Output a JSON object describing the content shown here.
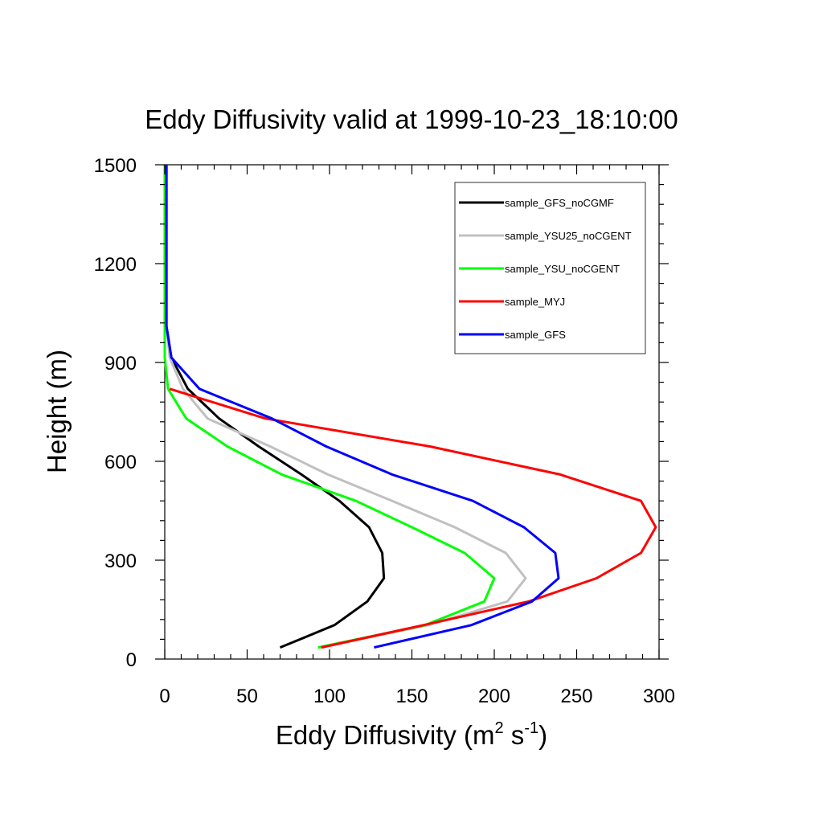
{
  "chart_data": {
    "type": "line",
    "title": "Eddy Diffusivity valid at 1999-10-23_18:10:00",
    "xlabel": "Eddy Diffusivity (m",
    "xlabel_sup1": "2",
    "xlabel_mid": " s",
    "xlabel_sup2": "-1",
    "xlabel_end": ")",
    "ylabel": "Height (m)",
    "xlim": [
      0,
      300
    ],
    "ylim": [
      0,
      1500
    ],
    "xticks": [
      0,
      50,
      100,
      150,
      200,
      250,
      300
    ],
    "yticks": [
      0,
      300,
      600,
      900,
      1200,
      1500
    ],
    "grid": false,
    "legend_position": "top-right",
    "series": [
      {
        "name": "sample_GFS_noCGMF",
        "color": "#000000",
        "x": [
          70,
          103,
          123,
          133,
          132,
          124,
          106,
          83,
          57,
          33,
          14,
          4,
          1,
          1,
          1,
          1
        ],
        "y": [
          35,
          103,
          175,
          245,
          322,
          400,
          480,
          560,
          645,
          730,
          820,
          915,
          1010,
          1110,
          1300,
          1500
        ]
      },
      {
        "name": "sample_YSU25_noCGENT",
        "color": "#c0c0c0",
        "x": [
          94,
          160,
          208,
          219,
          207,
          176,
          138,
          99,
          64,
          26,
          11,
          3,
          1,
          1
        ],
        "y": [
          35,
          103,
          175,
          245,
          322,
          400,
          480,
          560,
          645,
          730,
          820,
          915,
          1010,
          1500
        ]
      },
      {
        "name": "sample_YSU_noCGENT",
        "color": "#00ff00",
        "x": [
          93,
          158,
          194,
          200,
          182,
          150,
          116,
          71,
          38,
          13,
          2,
          0,
          0,
          0
        ],
        "y": [
          35,
          103,
          175,
          245,
          322,
          400,
          480,
          560,
          645,
          730,
          820,
          915,
          1010,
          1500
        ]
      },
      {
        "name": "sample_MYJ",
        "color": "#ff0000",
        "x": [
          95,
          157,
          221,
          262,
          289,
          298,
          289,
          240,
          161,
          61,
          3
        ],
        "y": [
          35,
          103,
          175,
          245,
          322,
          400,
          480,
          560,
          645,
          730,
          820
        ]
      },
      {
        "name": "sample_GFS",
        "color": "#0000ff",
        "x": [
          127,
          186,
          223,
          239,
          237,
          218,
          187,
          138,
          98,
          65,
          21,
          4,
          1,
          1,
          1
        ],
        "y": [
          35,
          103,
          175,
          245,
          322,
          400,
          480,
          560,
          645,
          730,
          820,
          915,
          1010,
          1110,
          1500
        ]
      }
    ]
  }
}
